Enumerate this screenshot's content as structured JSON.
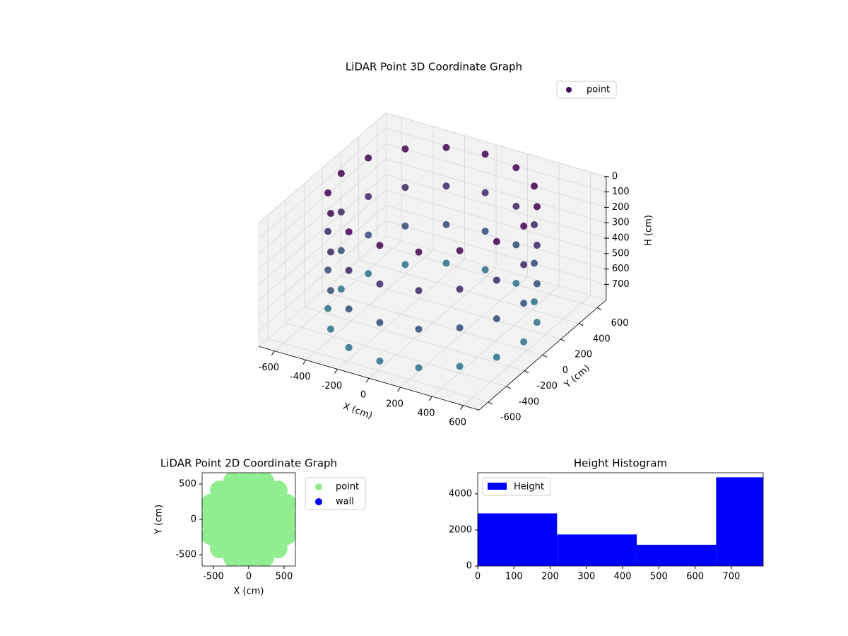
{
  "chart_data": [
    {
      "type": "scatter3d",
      "title": "LiDAR Point 3D Coordinate Graph",
      "xlabel": "X (cm)",
      "ylabel": "Y (cm)",
      "zlabel": "H (cm)",
      "xlim": [
        -700,
        700
      ],
      "ylim": [
        -700,
        700
      ],
      "zlim": [
        800,
        0
      ],
      "xticks": [
        -600,
        -400,
        -200,
        0,
        200,
        400,
        600
      ],
      "yticks": [
        -600,
        -400,
        -200,
        0,
        200,
        400,
        600
      ],
      "zticks": [
        0,
        100,
        200,
        300,
        400,
        500,
        600,
        700
      ],
      "colormap": [
        "#440154",
        "#2a788e"
      ],
      "legend": "upper right",
      "grid": true,
      "series": [
        {
          "name": "point",
          "color": "#440154",
          "x": [
            580,
            536,
            410,
            222,
            0,
            -222,
            -410,
            -536,
            -580,
            -536,
            -410,
            -222,
            0,
            222,
            410,
            536,
            580,
            536,
            410,
            222,
            0,
            -222,
            -410,
            -536,
            -580,
            -536,
            -410,
            -222,
            0,
            222,
            410,
            536,
            580,
            536,
            410,
            222,
            0,
            -222,
            -410,
            -536,
            -580,
            -536,
            -410,
            -222,
            0,
            222,
            410,
            536,
            580,
            536,
            410,
            222,
            0,
            -222,
            -410,
            -536,
            -580,
            -536,
            -410,
            -222,
            0,
            222,
            410,
            536
          ],
          "y": [
            0,
            222,
            410,
            536,
            580,
            536,
            410,
            222,
            0,
            -222,
            -410,
            -536,
            -580,
            -536,
            -410,
            -222,
            0,
            222,
            410,
            536,
            580,
            536,
            410,
            222,
            0,
            -222,
            -410,
            -536,
            -580,
            -536,
            -410,
            -222,
            0,
            222,
            410,
            536,
            580,
            536,
            410,
            222,
            0,
            -222,
            -410,
            -536,
            -580,
            -536,
            -410,
            -222,
            0,
            222,
            410,
            536,
            580,
            536,
            410,
            222,
            0,
            -222,
            -410,
            -536,
            -580,
            -536,
            -410,
            -222
          ],
          "z": [
            0,
            0,
            0,
            0,
            0,
            0,
            0,
            0,
            0,
            0,
            0,
            0,
            0,
            0,
            0,
            0,
            250,
            250,
            250,
            250,
            250,
            250,
            250,
            250,
            250,
            250,
            250,
            250,
            250,
            250,
            250,
            250,
            500,
            500,
            500,
            500,
            500,
            500,
            500,
            500,
            500,
            500,
            500,
            500,
            500,
            500,
            500,
            500,
            750,
            750,
            750,
            750,
            750,
            750,
            750,
            750,
            750,
            750,
            750,
            750,
            750,
            750,
            750,
            750
          ]
        }
      ]
    },
    {
      "type": "scatter",
      "title": "LiDAR Point 2D Coordinate Graph",
      "xlabel": "X (cm)",
      "ylabel": "Y (cm)",
      "xlim": [
        -660,
        660
      ],
      "ylim": [
        -660,
        660
      ],
      "xticks": [
        -500,
        0,
        500
      ],
      "yticks": [
        -500,
        0,
        500
      ],
      "legend": "outside right",
      "series": [
        {
          "name": "point",
          "color": "#90ee90",
          "x": [
            580,
            536,
            410,
            222,
            0,
            -222,
            -410,
            -536,
            -580,
            -536,
            -410,
            -222,
            0,
            222,
            410,
            536,
            400,
            370,
            283,
            153,
            0,
            -153,
            -283,
            -370,
            -400,
            -370,
            -283,
            -153,
            0,
            153,
            283,
            370,
            200,
            185,
            141,
            77,
            0,
            -77,
            -141,
            -185,
            -200,
            -185,
            -141,
            -77,
            0,
            77,
            141,
            185,
            0
          ],
          "y": [
            0,
            222,
            410,
            536,
            580,
            536,
            410,
            222,
            0,
            -222,
            -410,
            -536,
            -580,
            -536,
            -410,
            -222,
            0,
            153,
            283,
            370,
            400,
            370,
            283,
            153,
            0,
            -153,
            -283,
            -370,
            -400,
            -370,
            -283,
            -153,
            0,
            77,
            141,
            185,
            200,
            185,
            141,
            77,
            0,
            -77,
            -141,
            -185,
            -200,
            -185,
            -141,
            -77,
            0
          ]
        },
        {
          "name": "wall",
          "color": "#0000ff",
          "x": [],
          "y": []
        }
      ]
    },
    {
      "type": "histogram",
      "title": "Height Histogram",
      "bins": [
        0,
        219,
        439,
        658,
        878
      ],
      "xlim": [
        0,
        788
      ],
      "ylim": [
        0,
        5170
      ],
      "xticks": [
        0,
        100,
        200,
        300,
        400,
        500,
        600,
        700
      ],
      "yticks": [
        0,
        2000,
        4000
      ],
      "legend": "upper left",
      "series": [
        {
          "name": "Height",
          "color": "#0000ff",
          "values": [
            2920,
            1750,
            1180,
            4920
          ]
        }
      ]
    }
  ]
}
